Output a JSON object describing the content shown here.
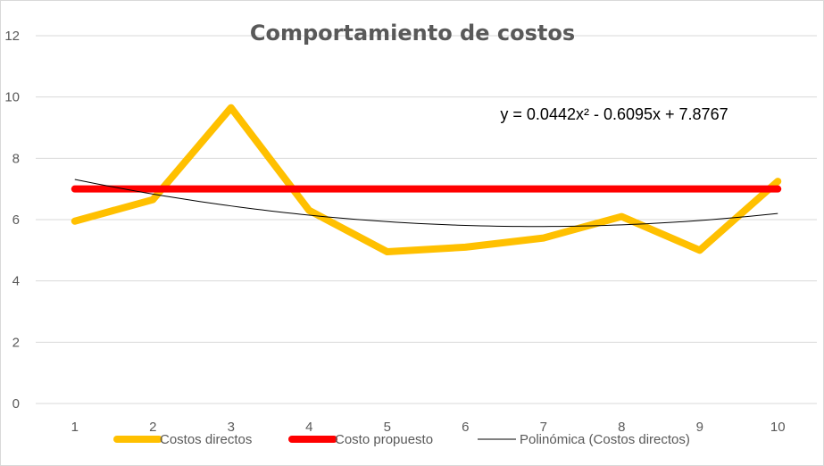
{
  "chart_data": {
    "type": "line",
    "title": "Comportamiento de costos",
    "xlabel": "",
    "ylabel": "",
    "x": [
      1,
      2,
      3,
      4,
      5,
      6,
      7,
      8,
      9,
      10
    ],
    "ylim": [
      0,
      12
    ],
    "yticks": [
      0,
      2,
      4,
      6,
      8,
      10,
      12
    ],
    "grid": true,
    "legend_position": "bottom",
    "series": [
      {
        "name": "Costos directos",
        "color": "#FFC000",
        "values": [
          5.95,
          6.65,
          9.65,
          6.3,
          4.95,
          5.1,
          5.4,
          6.1,
          5.0,
          7.25
        ]
      },
      {
        "name": "Costo propuesto",
        "color": "#FF0000",
        "values": [
          7,
          7,
          7,
          7,
          7,
          7,
          7,
          7,
          7,
          7
        ]
      }
    ],
    "trendline": {
      "name": "Polinómica (Costos directos)",
      "color": "#000000",
      "type": "polynomial",
      "coefficients": {
        "a": 0.0442,
        "b": -0.6095,
        "c": 7.8767
      },
      "equation": "y = 0.0442x² - 0.6095x + 7.8767"
    }
  }
}
